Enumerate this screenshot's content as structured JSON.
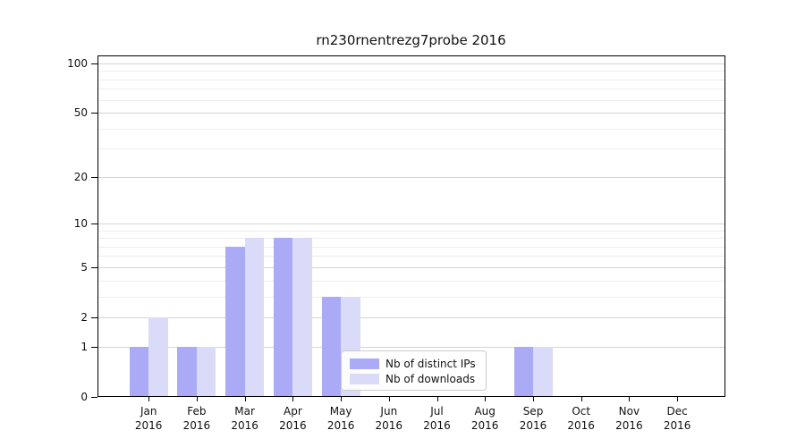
{
  "title": "rn230rnentrezg7probe 2016",
  "colors": {
    "distinct_ips_bar": "#aaaaf6",
    "downloads_bar": "#dadaf9",
    "grid_major": "#d4d4d4",
    "grid_minor": "#ededed",
    "spine": "#000000"
  },
  "legend": {
    "items": [
      {
        "label": "Nb of distinct IPs",
        "color": "#aaaaf6"
      },
      {
        "label": "Nb of downloads",
        "color": "#dadaf9"
      }
    ]
  },
  "x_axis": {
    "months": [
      "Jan",
      "Feb",
      "Mar",
      "Apr",
      "May",
      "Jun",
      "Jul",
      "Aug",
      "Sep",
      "Oct",
      "Nov",
      "Dec"
    ],
    "year": "2016"
  },
  "y_axis": {
    "tick_labels": [
      "100",
      "50",
      "20",
      "10",
      "5",
      "2",
      "1",
      "0"
    ],
    "tick_values": [
      100,
      50,
      20,
      10,
      5,
      2,
      1,
      0
    ]
  },
  "chart_data": {
    "type": "bar",
    "title": "rn230rnentrezg7probe 2016",
    "categories": [
      "Jan 2016",
      "Feb 2016",
      "Mar 2016",
      "Apr 2016",
      "May 2016",
      "Jun 2016",
      "Jul 2016",
      "Aug 2016",
      "Sep 2016",
      "Oct 2016",
      "Nov 2016",
      "Dec 2016"
    ],
    "series": [
      {
        "name": "Nb of distinct IPs",
        "color": "#aaaaf6",
        "values": [
          1,
          1,
          7,
          8,
          3,
          0,
          0,
          0,
          1,
          0,
          0,
          0
        ]
      },
      {
        "name": "Nb of downloads",
        "color": "#dadaf9",
        "values": [
          2,
          1,
          8,
          8,
          3,
          0,
          0,
          0,
          1,
          0,
          0,
          0
        ]
      }
    ],
    "xlabel": "",
    "ylabel": "",
    "yscale": "log(1+y)",
    "ylim": [
      0,
      112
    ],
    "y_major_ticks": [
      0,
      1,
      2,
      5,
      10,
      20,
      50,
      100
    ],
    "y_minor_gridlines": [
      3,
      4,
      6,
      7,
      8,
      9,
      30,
      40,
      60,
      70,
      80,
      90
    ],
    "grid": true,
    "legend_position": "lower center, inside axes"
  }
}
